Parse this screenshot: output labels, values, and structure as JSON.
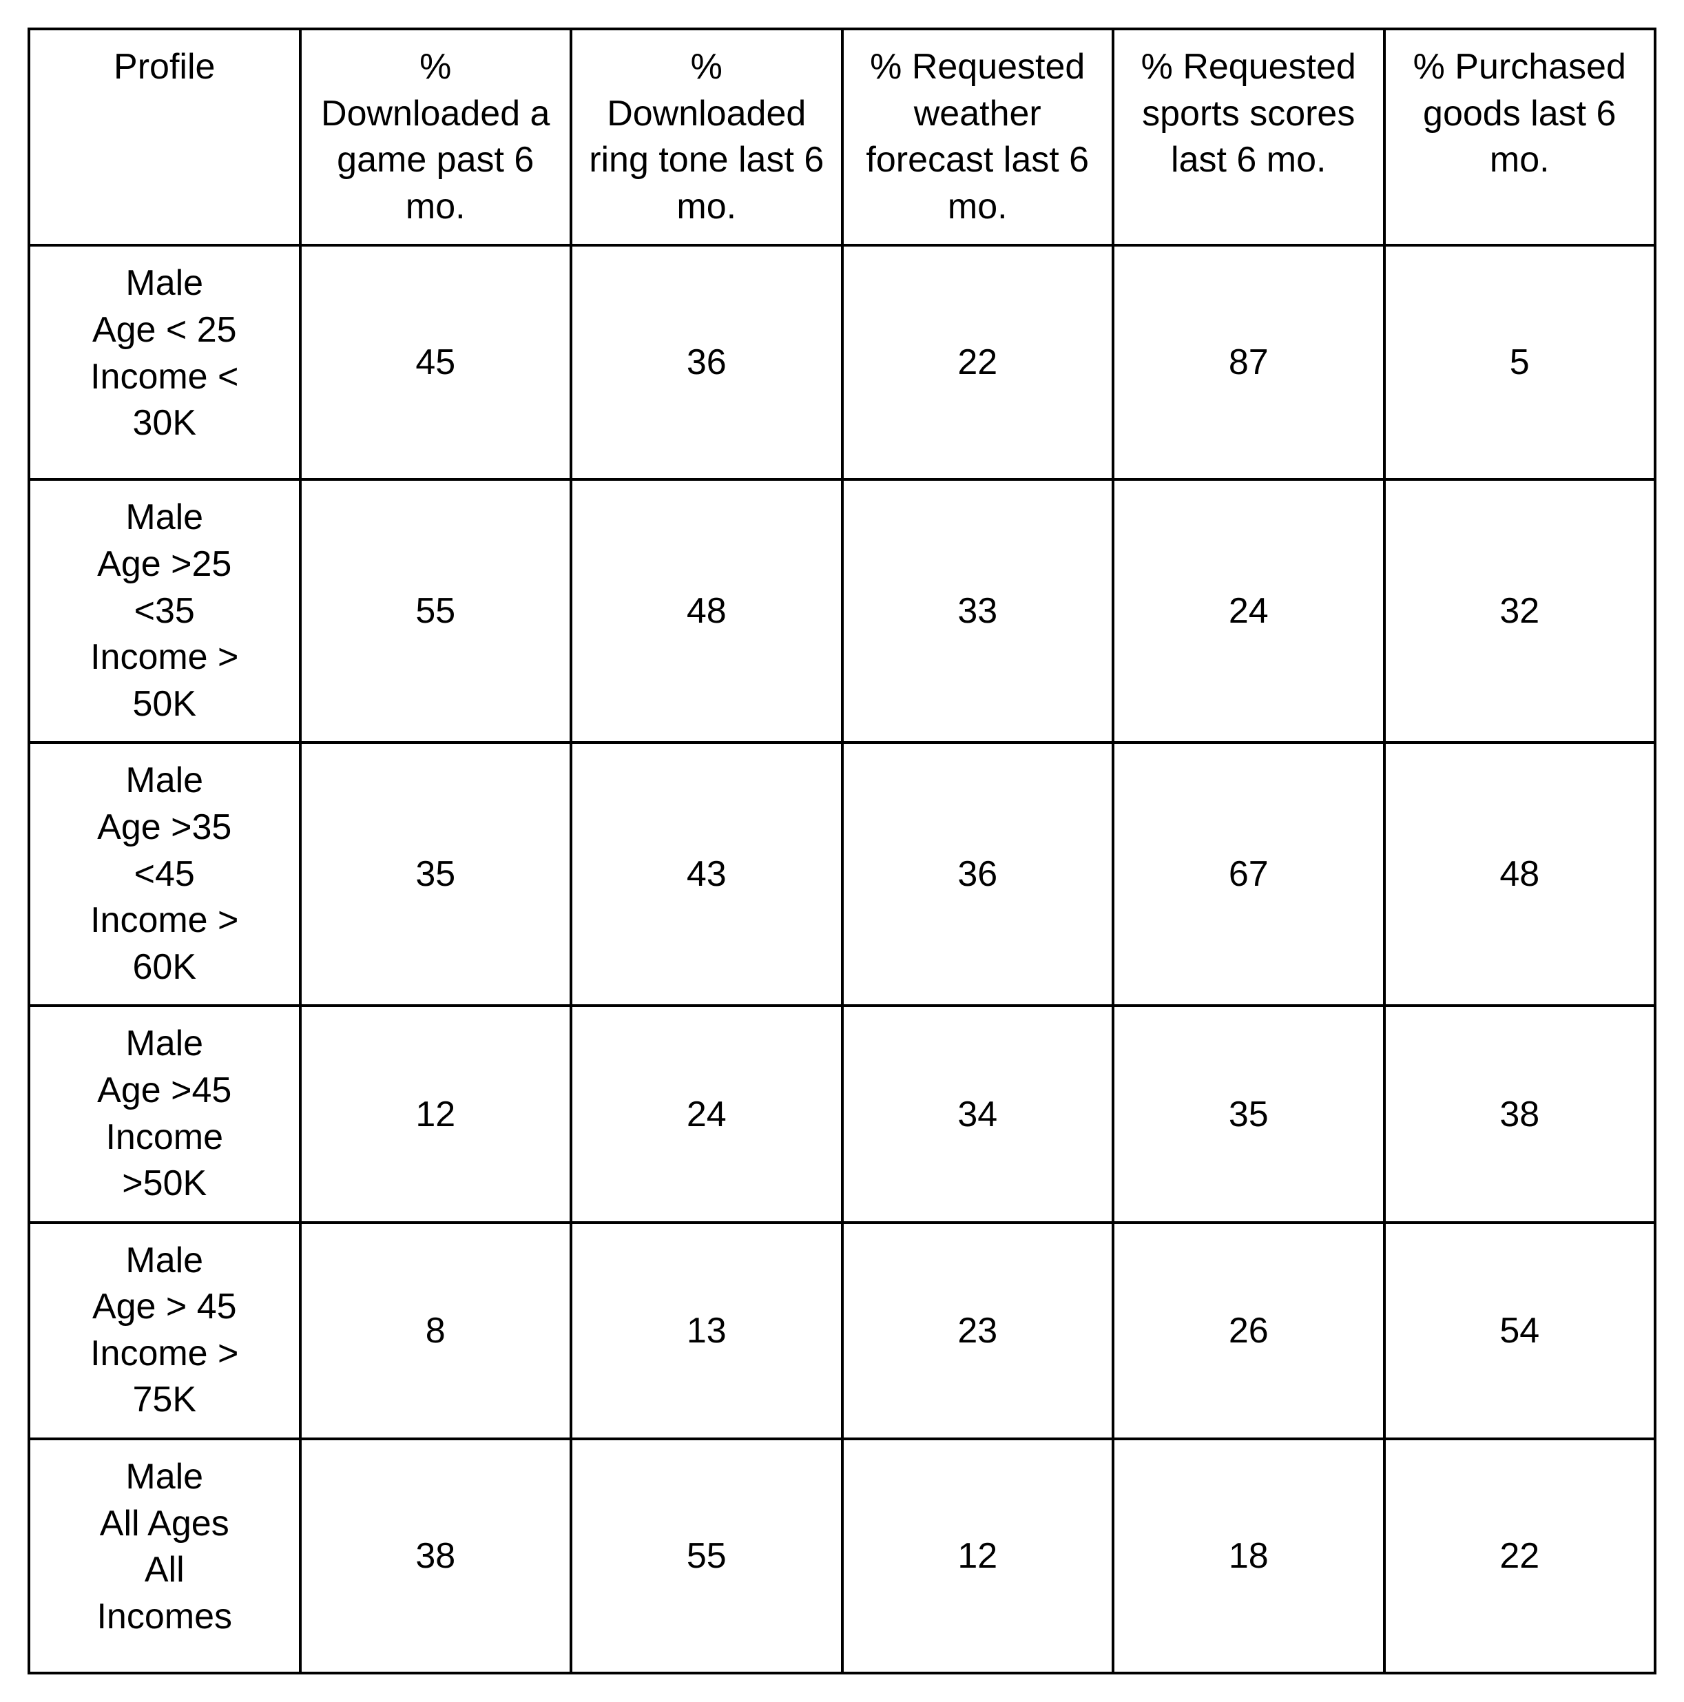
{
  "table": {
    "columns": [
      "Profile",
      "%\nDownloaded a\ngame past 6\nmo.",
      "%\nDownloaded\nring tone last 6\nmo.",
      "% Requested\nweather\nforecast last 6\nmo.",
      "% Requested\nsports scores\nlast 6 mo.",
      "% Purchased\ngoods last 6\nmo."
    ],
    "rows": [
      {
        "profile": "Male\nAge < 25\nIncome <\n30K",
        "values": [
          "45",
          "36",
          "22",
          "87",
          "5"
        ]
      },
      {
        "profile": "Male\nAge >25\n<35\nIncome >\n50K",
        "values": [
          "55",
          "48",
          "33",
          "24",
          "32"
        ]
      },
      {
        "profile": "Male\nAge >35\n<45\nIncome >\n60K",
        "values": [
          "35",
          "43",
          "36",
          "67",
          "48"
        ]
      },
      {
        "profile": "Male\nAge >45\nIncome\n>50K",
        "values": [
          "12",
          "24",
          "34",
          "35",
          "38"
        ]
      },
      {
        "profile": "Male\nAge > 45\nIncome >\n75K",
        "values": [
          "8",
          "13",
          "23",
          "26",
          "54"
        ]
      },
      {
        "profile": "Male\nAll Ages\nAll\nIncomes",
        "values": [
          "38",
          "55",
          "12",
          "18",
          "22"
        ]
      }
    ],
    "background_color": "#ffffff",
    "border_color": "#000000",
    "text_color": "#000000",
    "font_size": 52,
    "border_width": 4
  }
}
